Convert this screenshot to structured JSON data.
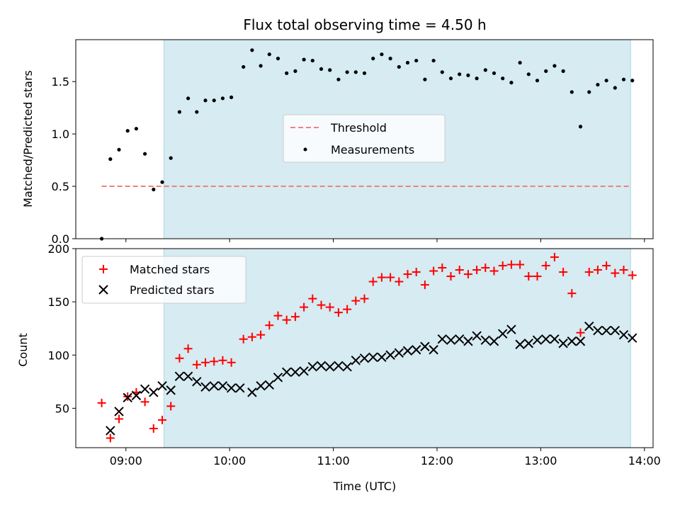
{
  "chart_data": [
    {
      "type": "scatter",
      "title": "Flux total observing time = 4.50 h",
      "xlabel": "",
      "ylabel": "Matched/Predicted stars",
      "xlim": [
        "08:31",
        "14:05"
      ],
      "ylim": [
        0,
        1.9
      ],
      "yticks": [
        "0.0",
        "0.5",
        "1.0",
        "1.5"
      ],
      "shaded_interval": [
        "09:22",
        "13:52"
      ],
      "colors": {
        "shade": "#add8e6",
        "threshold": "#f08080",
        "measurements": "#000000"
      },
      "legend_position": "center",
      "threshold": {
        "name": "Threshold",
        "value": 0.5,
        "x_range": [
          "08:46",
          "13:52"
        ]
      },
      "series": [
        {
          "name": "Measurements",
          "points": [
            [
              "08:46",
              0.0
            ],
            [
              "08:51",
              0.76
            ],
            [
              "08:56",
              0.85
            ],
            [
              "09:01",
              1.03
            ],
            [
              "09:06",
              1.05
            ],
            [
              "09:11",
              0.81
            ],
            [
              "09:16",
              0.47
            ],
            [
              "09:21",
              0.54
            ],
            [
              "09:26",
              0.77
            ],
            [
              "09:31",
              1.21
            ],
            [
              "09:36",
              1.34
            ],
            [
              "09:41",
              1.21
            ],
            [
              "09:46",
              1.32
            ],
            [
              "09:51",
              1.32
            ],
            [
              "09:56",
              1.34
            ],
            [
              "10:01",
              1.35
            ],
            [
              "10:08",
              1.64
            ],
            [
              "10:13",
              1.8
            ],
            [
              "10:18",
              1.65
            ],
            [
              "10:23",
              1.76
            ],
            [
              "10:28",
              1.72
            ],
            [
              "10:33",
              1.58
            ],
            [
              "10:38",
              1.6
            ],
            [
              "10:43",
              1.71
            ],
            [
              "10:48",
              1.7
            ],
            [
              "10:53",
              1.62
            ],
            [
              "10:58",
              1.61
            ],
            [
              "11:03",
              1.52
            ],
            [
              "11:08",
              1.59
            ],
            [
              "11:13",
              1.59
            ],
            [
              "11:18",
              1.58
            ],
            [
              "11:23",
              1.72
            ],
            [
              "11:28",
              1.76
            ],
            [
              "11:33",
              1.72
            ],
            [
              "11:38",
              1.64
            ],
            [
              "11:43",
              1.68
            ],
            [
              "11:48",
              1.7
            ],
            [
              "11:53",
              1.52
            ],
            [
              "11:58",
              1.7
            ],
            [
              "12:03",
              1.59
            ],
            [
              "12:08",
              1.53
            ],
            [
              "12:13",
              1.57
            ],
            [
              "12:18",
              1.56
            ],
            [
              "12:23",
              1.53
            ],
            [
              "12:28",
              1.61
            ],
            [
              "12:33",
              1.58
            ],
            [
              "12:38",
              1.53
            ],
            [
              "12:43",
              1.49
            ],
            [
              "12:48",
              1.68
            ],
            [
              "12:53",
              1.57
            ],
            [
              "12:58",
              1.51
            ],
            [
              "13:03",
              1.6
            ],
            [
              "13:08",
              1.65
            ],
            [
              "13:13",
              1.6
            ],
            [
              "13:18",
              1.4
            ],
            [
              "13:23",
              1.07
            ],
            [
              "13:28",
              1.4
            ],
            [
              "13:33",
              1.47
            ],
            [
              "13:38",
              1.51
            ],
            [
              "13:43",
              1.44
            ],
            [
              "13:48",
              1.52
            ],
            [
              "13:53",
              1.51
            ]
          ]
        }
      ]
    },
    {
      "type": "scatter",
      "title": "",
      "xlabel": "Time (UTC)",
      "ylabel": "Count",
      "xlim": [
        "08:31",
        "14:05"
      ],
      "ylim": [
        13,
        200
      ],
      "xticks": [
        "09:00",
        "10:00",
        "11:00",
        "12:00",
        "13:00",
        "14:00"
      ],
      "yticks": [
        "50",
        "100",
        "150",
        "200"
      ],
      "shaded_interval": [
        "09:22",
        "13:52"
      ],
      "colors": {
        "shade": "#add8e6",
        "matched": "#ff0000",
        "predicted": "#000000"
      },
      "legend_position": "upper left",
      "series": [
        {
          "name": "Matched stars",
          "marker": "plus",
          "points": [
            [
              "08:46",
              55
            ],
            [
              "08:51",
              22
            ],
            [
              "08:56",
              40
            ],
            [
              "09:01",
              61
            ],
            [
              "09:06",
              65
            ],
            [
              "09:11",
              56
            ],
            [
              "09:16",
              31
            ],
            [
              "09:21",
              39
            ],
            [
              "09:26",
              52
            ],
            [
              "09:31",
              97
            ],
            [
              "09:36",
              106
            ],
            [
              "09:41",
              91
            ],
            [
              "09:46",
              93
            ],
            [
              "09:51",
              94
            ],
            [
              "09:56",
              95
            ],
            [
              "10:01",
              93
            ],
            [
              "10:08",
              115
            ],
            [
              "10:13",
              117
            ],
            [
              "10:18",
              119
            ],
            [
              "10:23",
              128
            ],
            [
              "10:28",
              137
            ],
            [
              "10:33",
              133
            ],
            [
              "10:38",
              136
            ],
            [
              "10:43",
              145
            ],
            [
              "10:48",
              153
            ],
            [
              "10:53",
              147
            ],
            [
              "10:58",
              145
            ],
            [
              "11:03",
              140
            ],
            [
              "11:08",
              143
            ],
            [
              "11:13",
              151
            ],
            [
              "11:18",
              153
            ],
            [
              "11:23",
              169
            ],
            [
              "11:28",
              173
            ],
            [
              "11:33",
              173
            ],
            [
              "11:38",
              169
            ],
            [
              "11:43",
              176
            ],
            [
              "11:48",
              178
            ],
            [
              "11:53",
              166
            ],
            [
              "11:58",
              179
            ],
            [
              "12:03",
              182
            ],
            [
              "12:08",
              174
            ],
            [
              "12:13",
              180
            ],
            [
              "12:18",
              176
            ],
            [
              "12:23",
              180
            ],
            [
              "12:28",
              182
            ],
            [
              "12:33",
              179
            ],
            [
              "12:38",
              184
            ],
            [
              "12:43",
              185
            ],
            [
              "12:48",
              185
            ],
            [
              "12:53",
              174
            ],
            [
              "12:58",
              174
            ],
            [
              "13:03",
              184
            ],
            [
              "13:08",
              192
            ],
            [
              "13:13",
              178
            ],
            [
              "13:18",
              158
            ],
            [
              "13:23",
              121
            ],
            [
              "13:28",
              178
            ],
            [
              "13:33",
              180
            ],
            [
              "13:38",
              184
            ],
            [
              "13:43",
              177
            ],
            [
              "13:48",
              180
            ],
            [
              "13:53",
              175
            ]
          ]
        },
        {
          "name": "Predicted stars",
          "marker": "x",
          "points": [
            [
              "08:51",
              29
            ],
            [
              "08:56",
              47
            ],
            [
              "09:01",
              60
            ],
            [
              "09:06",
              62
            ],
            [
              "09:11",
              68
            ],
            [
              "09:16",
              65
            ],
            [
              "09:21",
              71
            ],
            [
              "09:26",
              67
            ],
            [
              "09:31",
              80
            ],
            [
              "09:36",
              80
            ],
            [
              "09:41",
              75
            ],
            [
              "09:46",
              70
            ],
            [
              "09:51",
              71
            ],
            [
              "09:56",
              71
            ],
            [
              "10:01",
              69
            ],
            [
              "10:06",
              69
            ],
            [
              "10:13",
              65
            ],
            [
              "10:18",
              71
            ],
            [
              "10:23",
              72
            ],
            [
              "10:28",
              79
            ],
            [
              "10:33",
              84
            ],
            [
              "10:38",
              84
            ],
            [
              "10:43",
              85
            ],
            [
              "10:48",
              89
            ],
            [
              "10:53",
              90
            ],
            [
              "10:58",
              89
            ],
            [
              "11:03",
              90
            ],
            [
              "11:08",
              89
            ],
            [
              "11:13",
              95
            ],
            [
              "11:18",
              97
            ],
            [
              "11:23",
              98
            ],
            [
              "11:28",
              98
            ],
            [
              "11:33",
              100
            ],
            [
              "11:38",
              102
            ],
            [
              "11:43",
              104
            ],
            [
              "11:48",
              105
            ],
            [
              "11:53",
              108
            ],
            [
              "11:58",
              105
            ],
            [
              "12:03",
              115
            ],
            [
              "12:08",
              114
            ],
            [
              "12:13",
              115
            ],
            [
              "12:18",
              113
            ],
            [
              "12:23",
              118
            ],
            [
              "12:28",
              114
            ],
            [
              "12:33",
              113
            ],
            [
              "12:38",
              120
            ],
            [
              "12:43",
              124
            ],
            [
              "12:48",
              110
            ],
            [
              "12:53",
              111
            ],
            [
              "12:58",
              114
            ],
            [
              "13:03",
              115
            ],
            [
              "13:08",
              115
            ],
            [
              "13:13",
              111
            ],
            [
              "13:18",
              113
            ],
            [
              "13:23",
              113
            ],
            [
              "13:28",
              127
            ],
            [
              "13:33",
              123
            ],
            [
              "13:38",
              123
            ],
            [
              "13:43",
              123
            ],
            [
              "13:48",
              119
            ],
            [
              "13:53",
              116
            ]
          ]
        }
      ]
    }
  ]
}
